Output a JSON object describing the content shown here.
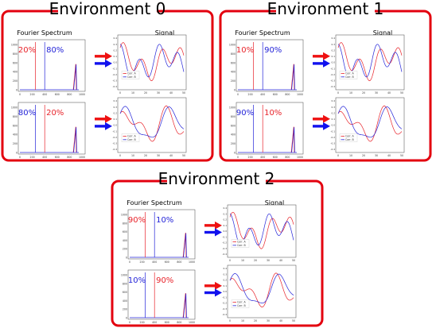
{
  "environments": [
    {
      "title": "Environment 0",
      "spectrum_header": "Fourier Spectrum",
      "signal_header": "Signal",
      "rows": [
        {
          "left_pct": "20%",
          "left_color": "red",
          "right_pct": "80%",
          "right_color": "blue",
          "legend": [
            "Corr. A",
            "Corr. B"
          ]
        },
        {
          "left_pct": "80%",
          "left_color": "blue",
          "right_pct": "20%",
          "right_color": "red",
          "legend": [
            "Corr. A",
            "Corr. B"
          ]
        }
      ]
    },
    {
      "title": "Environment 1",
      "spectrum_header": "Fourier Spectrum",
      "signal_header": "Signal",
      "rows": [
        {
          "left_pct": "10%",
          "left_color": "red",
          "right_pct": "90%",
          "right_color": "blue",
          "legend": [
            "Corr. A",
            "Corr. B"
          ]
        },
        {
          "left_pct": "90%",
          "left_color": "blue",
          "right_pct": "10%",
          "right_color": "red",
          "legend": [
            "Corr. A",
            "Corr. B"
          ]
        }
      ]
    },
    {
      "title": "Environment 2",
      "spectrum_header": "Fourier Spectrum",
      "signal_header": "Signal",
      "rows": [
        {
          "left_pct": "90%",
          "left_color": "red",
          "right_pct": "10%",
          "right_color": "blue",
          "legend": [
            "Corr. A",
            "Corr. B"
          ]
        },
        {
          "left_pct": "10%",
          "left_color": "blue",
          "right_pct": "90%",
          "right_color": "red",
          "legend": [
            "Corr. A",
            "Corr. B"
          ]
        }
      ]
    }
  ],
  "spectrum_yticks": [
    "0",
    "200",
    "400",
    "600",
    "800",
    "1000"
  ],
  "spectrum_xticks": [
    "0",
    "200",
    "400",
    "600",
    "800",
    "1000"
  ],
  "signal_yticks": [
    "0.4",
    "0.3",
    "0.2",
    "0.1",
    "0.0",
    "-0.1",
    "-0.2",
    "-0.3",
    "-0.4"
  ],
  "signal_xticks": [
    "0",
    "10",
    "20",
    "30",
    "40",
    "50"
  ],
  "colors": {
    "frame": "#e3000f",
    "corr_a": "#e8232a",
    "corr_b": "#2424d8",
    "arrow_red": "#ee1111",
    "arrow_blue": "#1111ee"
  }
}
